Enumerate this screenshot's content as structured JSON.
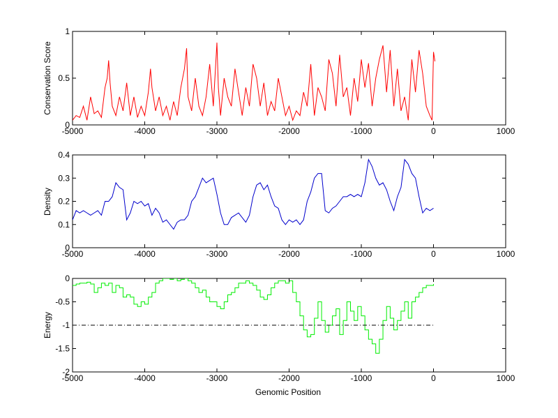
{
  "figure": {
    "background": "#ffffff"
  },
  "chart_data": [
    {
      "type": "line",
      "title": "",
      "xlabel": "",
      "ylabel": "Conservation Score",
      "xlim": [
        -5000,
        1000
      ],
      "ylim": [
        0,
        1
      ],
      "xticks": [
        -5000,
        -4000,
        -3000,
        -2000,
        -1000,
        0,
        1000
      ],
      "xtick_labels": [
        "-5000",
        "-4000",
        "-3000",
        "-2000",
        "-1000",
        "0",
        "1000"
      ],
      "yticks": [
        0,
        0.5,
        1
      ],
      "ytick_labels": [
        "0",
        "0.5",
        "1"
      ],
      "grid": false,
      "series": [
        {
          "color": "#ff0000",
          "style": "solid",
          "x": [
            -5000,
            -4950,
            -4900,
            -4850,
            -4800,
            -4750,
            -4700,
            -4650,
            -4600,
            -4550,
            -4520,
            -4500,
            -4480,
            -4450,
            -4400,
            -4350,
            -4300,
            -4250,
            -4200,
            -4150,
            -4100,
            -4050,
            -4000,
            -3950,
            -3920,
            -3900,
            -3850,
            -3800,
            -3750,
            -3700,
            -3650,
            -3600,
            -3550,
            -3500,
            -3450,
            -3420,
            -3400,
            -3350,
            -3300,
            -3250,
            -3200,
            -3150,
            -3100,
            -3050,
            -3000,
            -2980,
            -2950,
            -2900,
            -2850,
            -2800,
            -2750,
            -2700,
            -2650,
            -2600,
            -2550,
            -2500,
            -2450,
            -2400,
            -2350,
            -2300,
            -2250,
            -2200,
            -2150,
            -2100,
            -2050,
            -2000,
            -1950,
            -1900,
            -1850,
            -1800,
            -1750,
            -1700,
            -1650,
            -1600,
            -1550,
            -1500,
            -1450,
            -1400,
            -1350,
            -1300,
            -1250,
            -1200,
            -1150,
            -1100,
            -1050,
            -1000,
            -950,
            -900,
            -850,
            -800,
            -750,
            -700,
            -650,
            -600,
            -550,
            -500,
            -450,
            -400,
            -350,
            -300,
            -250,
            -200,
            -150,
            -100,
            -50,
            -20,
            0,
            20
          ],
          "values": [
            0.05,
            0.1,
            0.08,
            0.2,
            0.05,
            0.3,
            0.12,
            0.15,
            0.08,
            0.4,
            0.5,
            0.69,
            0.45,
            0.2,
            0.1,
            0.3,
            0.15,
            0.45,
            0.1,
            0.3,
            0.08,
            0.2,
            0.1,
            0.35,
            0.6,
            0.4,
            0.15,
            0.3,
            0.1,
            0.2,
            0.05,
            0.25,
            0.1,
            0.4,
            0.6,
            0.82,
            0.3,
            0.15,
            0.5,
            0.2,
            0.1,
            0.3,
            0.65,
            0.2,
            0.88,
            0.4,
            0.1,
            0.5,
            0.3,
            0.2,
            0.6,
            0.35,
            0.1,
            0.4,
            0.2,
            0.65,
            0.5,
            0.2,
            0.45,
            0.1,
            0.25,
            0.15,
            0.5,
            0.3,
            0.1,
            0.2,
            0.05,
            0.15,
            0.1,
            0.35,
            0.2,
            0.65,
            0.1,
            0.4,
            0.3,
            0.15,
            0.7,
            0.55,
            0.2,
            0.75,
            0.3,
            0.4,
            0.1,
            0.5,
            0.25,
            0.7,
            0.4,
            0.66,
            0.2,
            0.5,
            0.7,
            0.85,
            0.35,
            0.8,
            0.2,
            0.6,
            0.15,
            0.3,
            0.05,
            0.7,
            0.35,
            0.8,
            0.55,
            0.2,
            0.1,
            0.05,
            0.78,
            0.68
          ]
        }
      ]
    },
    {
      "type": "line",
      "title": "",
      "xlabel": "",
      "ylabel": "Density",
      "xlim": [
        -5000,
        1000
      ],
      "ylim": [
        0,
        0.4
      ],
      "xticks": [
        -5000,
        -4000,
        -3000,
        -2000,
        -1000,
        0,
        1000
      ],
      "xtick_labels": [
        "-5000",
        "-4000",
        "-3000",
        "-2000",
        "-1000",
        "0",
        "1000"
      ],
      "yticks": [
        0,
        0.1,
        0.2,
        0.3,
        0.4
      ],
      "ytick_labels": [
        "0",
        "0.1",
        "0.2",
        "0.3",
        "0.4"
      ],
      "grid": false,
      "series": [
        {
          "color": "#0000cc",
          "style": "solid",
          "x": [
            -5000,
            -4950,
            -4900,
            -4850,
            -4800,
            -4750,
            -4700,
            -4650,
            -4600,
            -4550,
            -4500,
            -4450,
            -4400,
            -4350,
            -4300,
            -4250,
            -4200,
            -4150,
            -4100,
            -4050,
            -4000,
            -3950,
            -3900,
            -3850,
            -3800,
            -3750,
            -3700,
            -3650,
            -3600,
            -3550,
            -3500,
            -3450,
            -3400,
            -3350,
            -3300,
            -3250,
            -3200,
            -3150,
            -3100,
            -3050,
            -3000,
            -2950,
            -2900,
            -2850,
            -2800,
            -2750,
            -2700,
            -2650,
            -2600,
            -2550,
            -2500,
            -2450,
            -2400,
            -2350,
            -2300,
            -2250,
            -2200,
            -2150,
            -2100,
            -2050,
            -2000,
            -1950,
            -1900,
            -1850,
            -1800,
            -1750,
            -1700,
            -1650,
            -1600,
            -1550,
            -1500,
            -1450,
            -1400,
            -1350,
            -1300,
            -1250,
            -1200,
            -1150,
            -1100,
            -1050,
            -1000,
            -950,
            -900,
            -850,
            -800,
            -750,
            -700,
            -650,
            -600,
            -550,
            -500,
            -450,
            -400,
            -350,
            -300,
            -250,
            -200,
            -150,
            -100,
            -50,
            0
          ],
          "values": [
            0.12,
            0.16,
            0.15,
            0.16,
            0.15,
            0.14,
            0.15,
            0.16,
            0.14,
            0.2,
            0.2,
            0.22,
            0.28,
            0.26,
            0.25,
            0.12,
            0.15,
            0.2,
            0.19,
            0.2,
            0.18,
            0.19,
            0.14,
            0.17,
            0.15,
            0.11,
            0.12,
            0.1,
            0.08,
            0.11,
            0.12,
            0.12,
            0.14,
            0.2,
            0.22,
            0.26,
            0.3,
            0.28,
            0.29,
            0.3,
            0.23,
            0.15,
            0.1,
            0.1,
            0.13,
            0.14,
            0.15,
            0.13,
            0.11,
            0.14,
            0.22,
            0.27,
            0.28,
            0.25,
            0.27,
            0.22,
            0.18,
            0.17,
            0.12,
            0.1,
            0.12,
            0.11,
            0.12,
            0.1,
            0.12,
            0.2,
            0.24,
            0.3,
            0.32,
            0.32,
            0.16,
            0.15,
            0.17,
            0.18,
            0.2,
            0.22,
            0.22,
            0.23,
            0.22,
            0.23,
            0.22,
            0.28,
            0.38,
            0.35,
            0.3,
            0.27,
            0.28,
            0.25,
            0.2,
            0.16,
            0.22,
            0.26,
            0.38,
            0.36,
            0.32,
            0.3,
            0.22,
            0.15,
            0.17,
            0.16,
            0.17
          ]
        }
      ]
    },
    {
      "type": "line",
      "title": "",
      "xlabel": "Genomic Position",
      "ylabel": "Energy",
      "xlim": [
        -5000,
        1000
      ],
      "ylim": [
        -2,
        0
      ],
      "xticks": [
        -5000,
        -4000,
        -3000,
        -2000,
        -1000,
        0,
        1000
      ],
      "xtick_labels": [
        "-5000",
        "-4000",
        "-3000",
        "-2000",
        "-1000",
        "0",
        "1000"
      ],
      "yticks": [
        -2,
        -1.5,
        -1,
        -0.5,
        0
      ],
      "ytick_labels": [
        "-2",
        "-1.5",
        "-1",
        "-0.5",
        "0"
      ],
      "grid": false,
      "series": [
        {
          "color": "#00ee00",
          "style": "step",
          "x": [
            -5000,
            -4950,
            -4900,
            -4850,
            -4800,
            -4750,
            -4700,
            -4650,
            -4600,
            -4550,
            -4500,
            -4450,
            -4400,
            -4350,
            -4300,
            -4250,
            -4200,
            -4150,
            -4100,
            -4050,
            -4000,
            -3950,
            -3900,
            -3850,
            -3800,
            -3750,
            -3700,
            -3650,
            -3600,
            -3550,
            -3500,
            -3450,
            -3400,
            -3350,
            -3300,
            -3250,
            -3200,
            -3150,
            -3100,
            -3050,
            -3000,
            -2950,
            -2900,
            -2850,
            -2800,
            -2750,
            -2700,
            -2650,
            -2600,
            -2550,
            -2500,
            -2450,
            -2400,
            -2350,
            -2300,
            -2250,
            -2200,
            -2150,
            -2100,
            -2050,
            -2000,
            -1950,
            -1900,
            -1850,
            -1800,
            -1750,
            -1700,
            -1650,
            -1600,
            -1550,
            -1500,
            -1450,
            -1400,
            -1350,
            -1300,
            -1250,
            -1200,
            -1150,
            -1100,
            -1050,
            -1000,
            -950,
            -900,
            -850,
            -800,
            -750,
            -700,
            -650,
            -600,
            -550,
            -500,
            -450,
            -400,
            -350,
            -300,
            -250,
            -200,
            -150,
            -100,
            -50,
            0
          ],
          "values": [
            -0.15,
            -0.12,
            -0.1,
            -0.1,
            -0.08,
            -0.12,
            -0.3,
            -0.2,
            -0.1,
            -0.15,
            -0.1,
            -0.3,
            -0.15,
            -0.2,
            -0.4,
            -0.35,
            -0.4,
            -0.55,
            -0.6,
            -0.5,
            -0.55,
            -0.4,
            -0.3,
            -0.1,
            -0.05,
            0.0,
            0.0,
            -0.02,
            0.0,
            -0.05,
            -0.02,
            0.0,
            -0.05,
            -0.1,
            -0.2,
            -0.3,
            -0.25,
            -0.4,
            -0.5,
            -0.5,
            -0.6,
            -0.65,
            -0.5,
            -0.35,
            -0.3,
            -0.2,
            -0.1,
            -0.1,
            -0.05,
            -0.1,
            -0.15,
            -0.25,
            -0.4,
            -0.45,
            -0.35,
            -0.2,
            -0.1,
            -0.05,
            -0.05,
            -0.1,
            -0.05,
            -0.3,
            -0.5,
            -0.8,
            -1.1,
            -1.25,
            -1.2,
            -0.85,
            -0.5,
            -0.9,
            -1.15,
            -1.0,
            -0.8,
            -0.65,
            -1.2,
            -0.9,
            -0.5,
            -0.7,
            -0.9,
            -0.6,
            -0.8,
            -1.1,
            -1.3,
            -1.4,
            -1.6,
            -1.3,
            -0.9,
            -0.6,
            -0.85,
            -1.1,
            -0.9,
            -0.7,
            -0.5,
            -0.85,
            -0.5,
            -0.4,
            -0.3,
            -0.2,
            -0.15,
            -0.15,
            -0.12
          ]
        },
        {
          "color": "#000000",
          "style": "dashdot",
          "x": [
            -5000,
            0
          ],
          "values": [
            -1,
            -1
          ]
        }
      ]
    }
  ]
}
